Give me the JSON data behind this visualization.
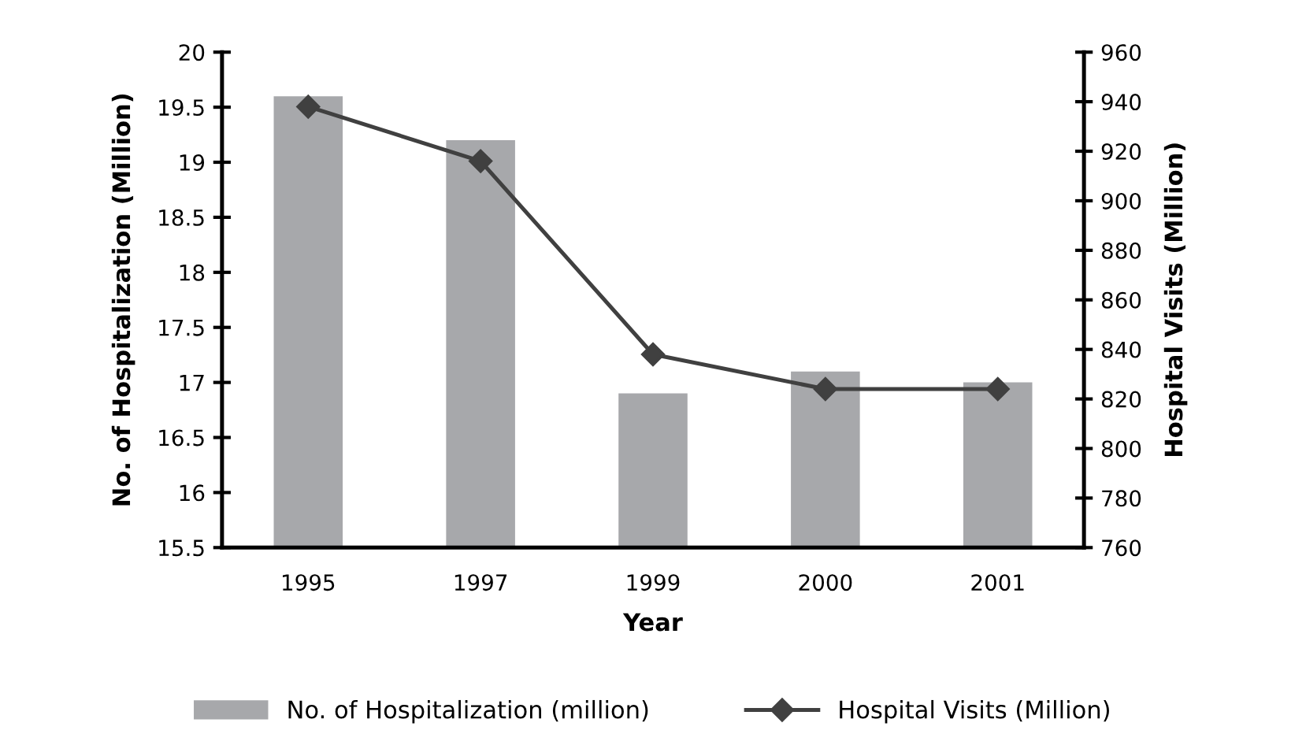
{
  "chart_data": {
    "type": "bar",
    "xlabel": "Year",
    "ylabel": "No. of Hospitalization (Million)",
    "y2label": "Hospital Visits (Million)",
    "categories": [
      "1995",
      "1997",
      "1999",
      "2000",
      "2001"
    ],
    "series": [
      {
        "name": "No. of Hospitalization (million)",
        "color": "#a7a8ab",
        "values": [
          19.6,
          19.2,
          16.9,
          17.1,
          17.0
        ]
      },
      {
        "name": "Hospital Visits (Million)",
        "type": "line",
        "axis": "y2",
        "color": "#404040",
        "marker": "diamond",
        "values": [
          938,
          916,
          838,
          824,
          824
        ]
      }
    ],
    "ylim": [
      15.5,
      20
    ],
    "yticks": [
      15.5,
      16,
      16.5,
      17,
      17.5,
      18,
      18.5,
      19,
      19.5,
      20
    ],
    "y2lim": [
      760,
      960
    ],
    "y2ticks": [
      760,
      780,
      800,
      820,
      840,
      860,
      880,
      900,
      920,
      940,
      960
    ],
    "grid": false,
    "legend": "bottom"
  }
}
